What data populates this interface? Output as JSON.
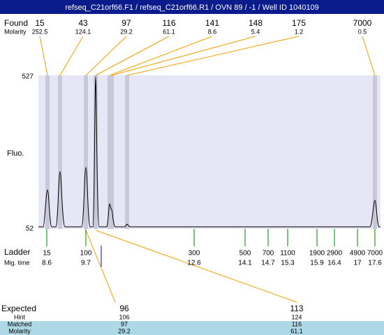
{
  "title": "refseq_C21orf66.F1 / refseq_C21orf66.R1 / OVN 89 / -1 / Well ID 1040109",
  "found": {
    "label": "Found",
    "values": [
      15,
      43,
      97,
      116,
      141,
      148,
      175,
      7000
    ]
  },
  "molarity": {
    "label": "Molarity",
    "values": [
      252.5,
      124.1,
      29.2,
      61.1,
      8.6,
      5.4,
      1.2,
      0.5
    ]
  },
  "y_axis": {
    "label": "Fluo.",
    "max": 527,
    "min": 52
  },
  "ladder": {
    "label": "Ladder",
    "sizes": [
      15,
      100,
      300,
      500,
      700,
      1100,
      1900,
      2900,
      4900,
      7000
    ]
  },
  "mig_time": {
    "label": "Mig. time",
    "values": [
      8.6,
      9.7,
      12.6,
      14.1,
      14.7,
      15.3,
      15.9,
      16.4,
      17,
      17.6
    ]
  },
  "expected": {
    "rows": [
      {
        "label": "Expected",
        "values": [
          96,
          113
        ]
      },
      {
        "label": "Hint",
        "values": [
          106,
          124
        ]
      },
      {
        "label": "Matched",
        "values": [
          97,
          116
        ]
      },
      {
        "label": "Molarity",
        "values": [
          29.2,
          61.1
        ]
      }
    ]
  }
}
